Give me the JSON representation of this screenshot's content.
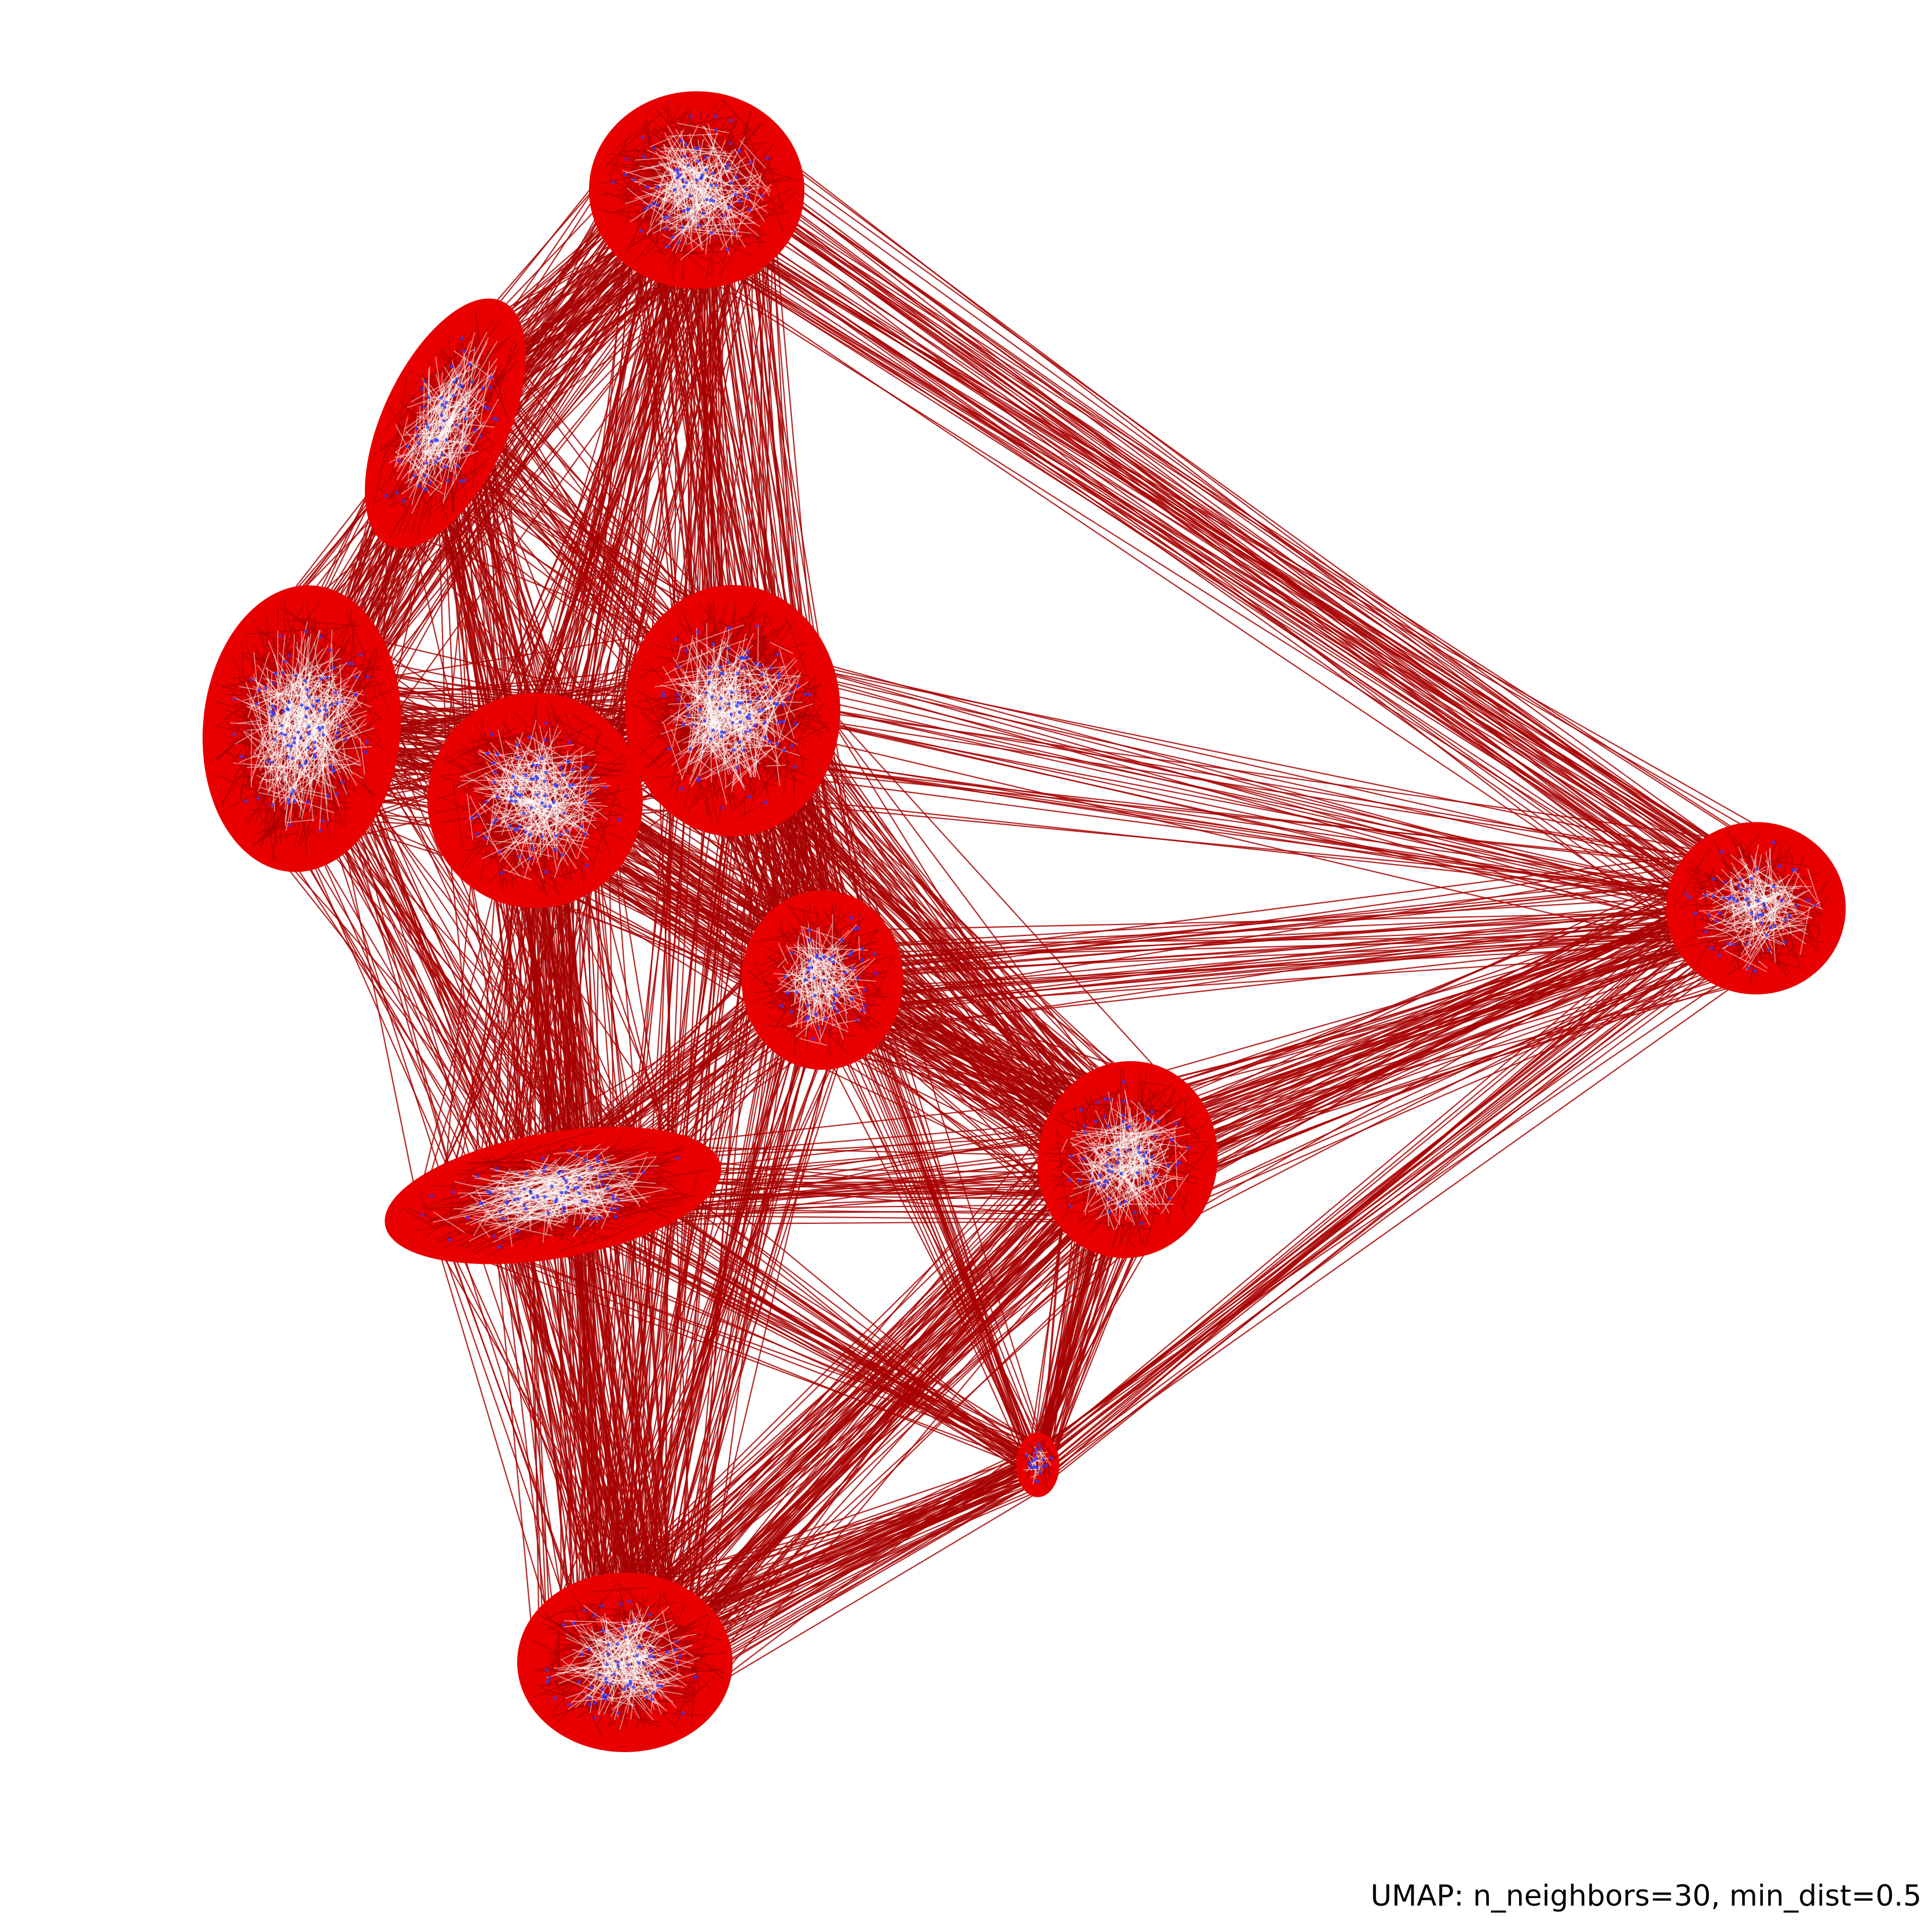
{
  "chart_data": {
    "type": "scatter",
    "title": "",
    "caption": "UMAP: n_neighbors=30, min_dist=0.5",
    "xlabel": "",
    "ylabel": "",
    "axes_visible": false,
    "grid": false,
    "legend": "none",
    "xlim": [
      0,
      100
    ],
    "ylim": [
      0,
      100
    ],
    "colors": {
      "edge": "#a80000",
      "edge_dense": "#e80000",
      "highlight": "#ffffff",
      "point": "#2b3bff",
      "background": "#ffffff"
    },
    "clusters": [
      {
        "x": 33,
        "y": 92,
        "rx": 6.0,
        "ry": 5.5,
        "angle": 0
      },
      {
        "x": 19,
        "y": 79,
        "rx": 3.5,
        "ry": 7.5,
        "angle": 25
      },
      {
        "x": 11,
        "y": 62,
        "rx": 5.5,
        "ry": 8.0,
        "angle": 5
      },
      {
        "x": 24,
        "y": 58,
        "rx": 6.0,
        "ry": 6.0,
        "angle": 0
      },
      {
        "x": 35,
        "y": 63,
        "rx": 6.0,
        "ry": 7.0,
        "angle": 0
      },
      {
        "x": 40,
        "y": 48,
        "rx": 4.5,
        "ry": 5.0,
        "angle": 0
      },
      {
        "x": 25,
        "y": 36,
        "rx": 9.5,
        "ry": 3.5,
        "angle": -10
      },
      {
        "x": 57,
        "y": 38,
        "rx": 5.0,
        "ry": 5.5,
        "angle": 10
      },
      {
        "x": 92,
        "y": 52,
        "rx": 5.0,
        "ry": 4.8,
        "angle": 0
      },
      {
        "x": 52,
        "y": 21,
        "rx": 1.2,
        "ry": 1.8,
        "angle": 0
      },
      {
        "x": 29,
        "y": 10,
        "rx": 6.0,
        "ry": 5.0,
        "angle": 0
      }
    ]
  }
}
